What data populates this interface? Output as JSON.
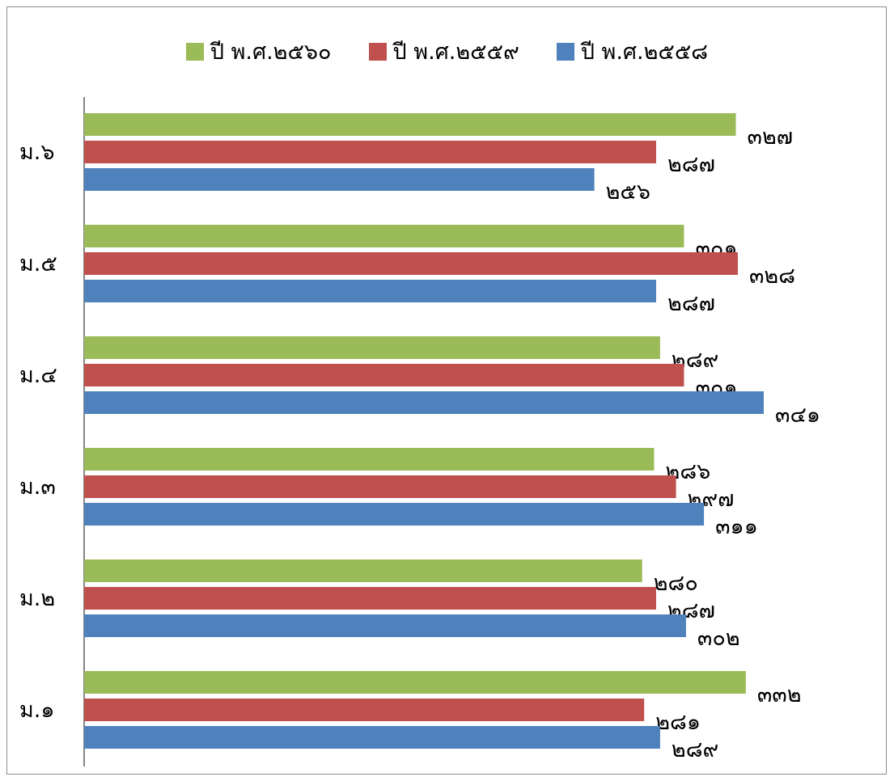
{
  "chart_data": {
    "type": "bar",
    "orientation": "horizontal",
    "categories": [
      "ม.๖",
      "ม.๕",
      "ม.๔",
      "ม.๓",
      "ม.๒",
      "ม.๑"
    ],
    "series": [
      {
        "name": "ปี พ.ศ.๒๕๖๐",
        "color": "#9BBB59",
        "values": [
          327,
          301,
          289,
          286,
          280,
          332
        ],
        "labels": [
          "๓๒๗",
          "๓๐๑",
          "๒๘๙",
          "๒๘๖",
          "๒๘๐",
          "๓๓๒"
        ]
      },
      {
        "name": "ปี พ.ศ.๒๕๕๙",
        "color": "#C0504D",
        "values": [
          287,
          328,
          301,
          297,
          287,
          281
        ],
        "labels": [
          "๒๘๗",
          "๓๒๘",
          "๓๐๑",
          "๒๙๗",
          "๒๘๗",
          "๒๘๑"
        ]
      },
      {
        "name": "ปี พ.ศ.๒๕๕๘",
        "color": "#4F81BD",
        "values": [
          256,
          287,
          341,
          311,
          302,
          289
        ],
        "labels": [
          "๒๕๖",
          "๒๘๗",
          "๓๔๑",
          "๓๑๑",
          "๓๐๒",
          "๒๘๙"
        ]
      }
    ],
    "xlim": [
      0,
      350
    ],
    "legend_position": "top",
    "grid": false
  }
}
